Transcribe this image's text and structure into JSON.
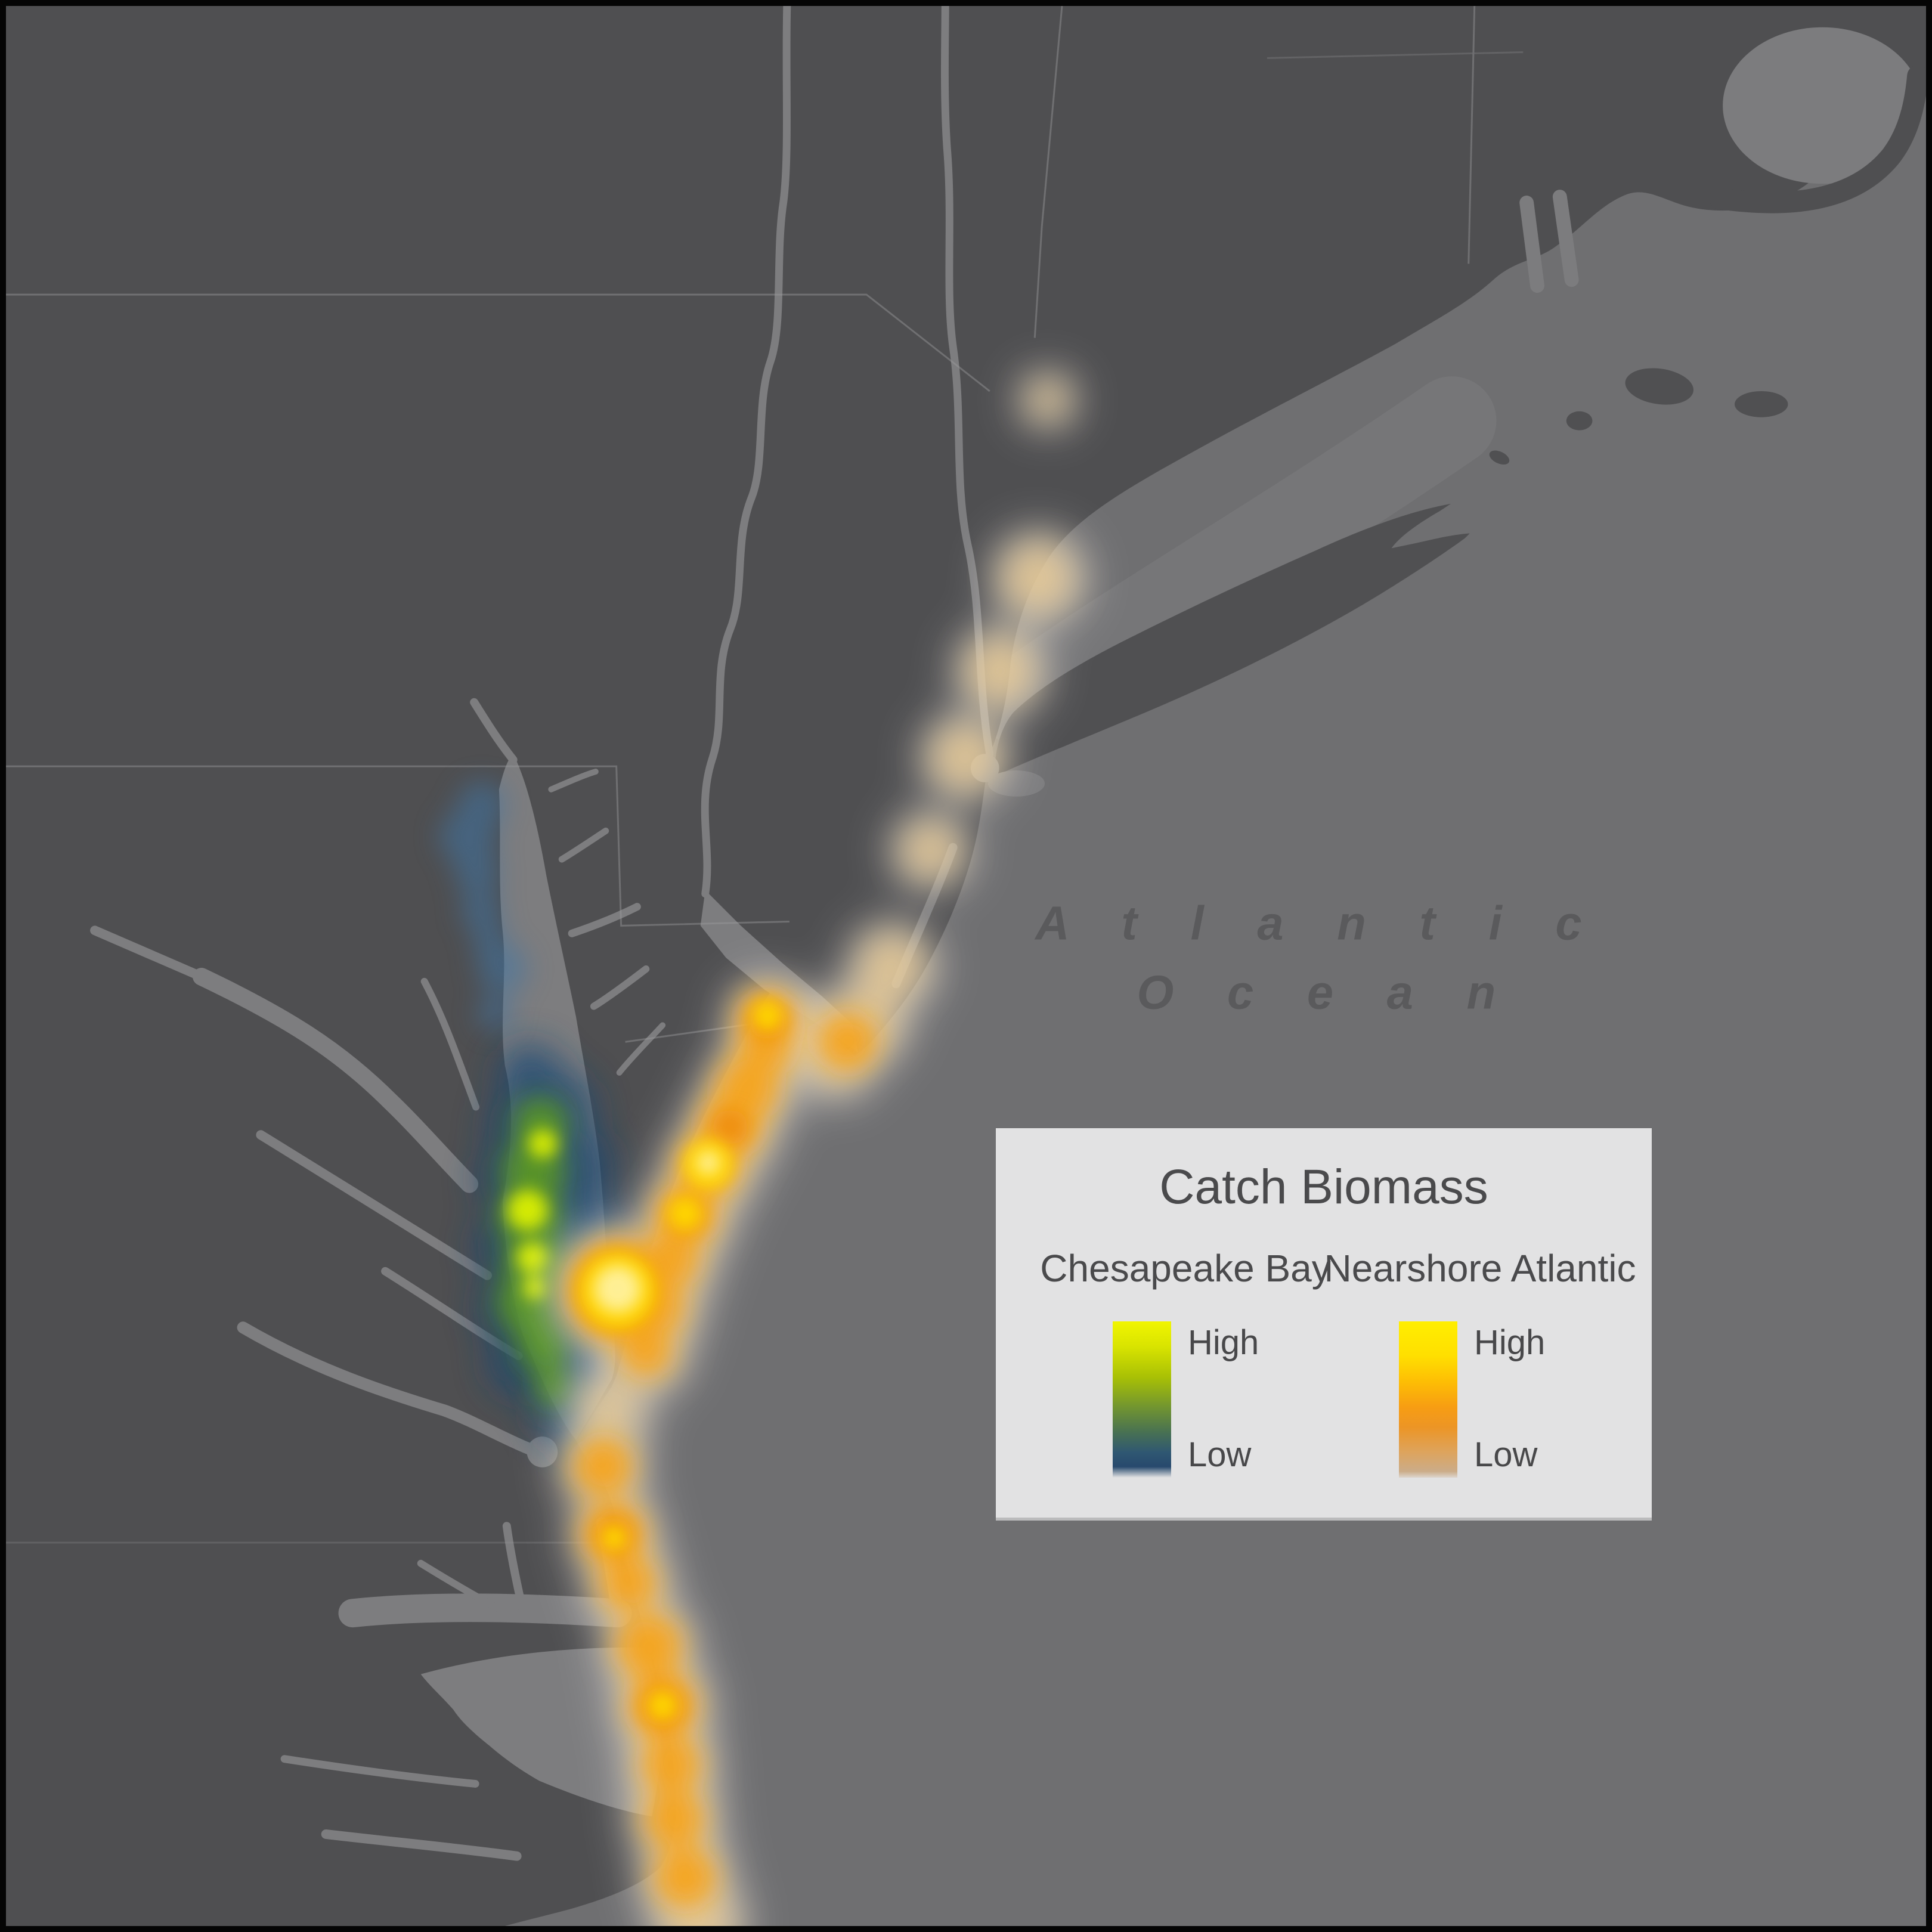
{
  "map": {
    "ocean_label_line1": "A t l a n t i c",
    "ocean_label_line2": "O c e a n",
    "colors": {
      "frame": "#050505",
      "ocean": "#6f6f71",
      "land": "#4f4f51",
      "estuary_water": "#7d7d7f",
      "sound_water": "#7c7c7e",
      "boundary_line": "#9a9a9c"
    }
  },
  "legend": {
    "title": "Catch Biomass",
    "columns": [
      {
        "name": "Chesapeake Bay",
        "high_label": "High",
        "low_label": "Low",
        "ramp_css": "linear-gradient(to bottom,#f1f500 0%,#d9e400 16%,#a8c005 36%,#74972e 54%,#4a7350 70%,#2f5772 84%,#27496d 93%,rgba(226,226,227,0) 100%)"
      },
      {
        "name": "Nearshore Atlantic",
        "high_label": "High",
        "low_label": "Low",
        "ramp_css": "linear-gradient(to bottom,#ffee00 0%,#ffdf00 22%,#fdbb05 40%,#f79d13 55%,#ec9526 68%,#dda45e 84%,#cbac89 96%,rgba(203,172,137,0.25) 100%)"
      }
    ]
  },
  "heat_layers": [
    {
      "name": "atlantic-halo",
      "color": "#ffffff",
      "opacity": 0.5,
      "blur": "b40",
      "blobs": [
        [
          1758,
          665,
          48
        ],
        [
          1742,
          965,
          80
        ],
        [
          1678,
          1122,
          78
        ],
        [
          1618,
          1268,
          75
        ],
        [
          1560,
          1425,
          68
        ],
        [
          1495,
          1620,
          75
        ],
        [
          1448,
          1712,
          75
        ],
        [
          1398,
          1772,
          75
        ],
        [
          1340,
          1732,
          62
        ],
        [
          1285,
          1712,
          70
        ],
        [
          1252,
          1832,
          78
        ],
        [
          1224,
          1895,
          80
        ],
        [
          1188,
          1962,
          80
        ],
        [
          1150,
          2042,
          80
        ],
        [
          1122,
          2118,
          78
        ],
        [
          1100,
          2198,
          76
        ],
        [
          1080,
          2272,
          72
        ],
        [
          1032,
          2168,
          115
        ],
        [
          1015,
          2368,
          72
        ],
        [
          1005,
          2462,
          75
        ],
        [
          1026,
          2578,
          75
        ],
        [
          1050,
          2662,
          75
        ],
        [
          1085,
          2768,
          80
        ],
        [
          1108,
          2868,
          85
        ],
        [
          1122,
          2968,
          80
        ],
        [
          1128,
          3058,
          80
        ],
        [
          1145,
          3155,
          80
        ],
        [
          1168,
          3235,
          80
        ]
      ]
    },
    {
      "name": "atlantic-tan-base",
      "color": "#e8c993",
      "opacity": 0.85,
      "blur": "b30",
      "blobs": [
        [
          1758,
          665,
          34
        ],
        [
          1742,
          965,
          62
        ],
        [
          1678,
          1122,
          60
        ],
        [
          1618,
          1268,
          58
        ],
        [
          1560,
          1425,
          50
        ],
        [
          1495,
          1620,
          58
        ],
        [
          1448,
          1715,
          60
        ],
        [
          1400,
          1768,
          58
        ],
        [
          1340,
          1730,
          50
        ],
        [
          1285,
          1712,
          56
        ],
        [
          1282,
          1765,
          54
        ],
        [
          1252,
          1832,
          60
        ],
        [
          1224,
          1895,
          62
        ],
        [
          1188,
          1962,
          62
        ],
        [
          1150,
          2042,
          62
        ],
        [
          1122,
          2118,
          60
        ],
        [
          1100,
          2198,
          58
        ],
        [
          1080,
          2272,
          56
        ],
        [
          1032,
          2168,
          95
        ],
        [
          1015,
          2368,
          55
        ],
        [
          1005,
          2462,
          60
        ],
        [
          1026,
          2578,
          60
        ],
        [
          1050,
          2662,
          58
        ],
        [
          1085,
          2768,
          62
        ],
        [
          1108,
          2868,
          66
        ],
        [
          1122,
          2968,
          62
        ],
        [
          1128,
          3058,
          62
        ],
        [
          1145,
          3155,
          62
        ],
        [
          1168,
          3235,
          62
        ]
      ]
    },
    {
      "name": "atlantic-orange",
      "color": "#f7a315",
      "opacity": 0.9,
      "blur": "b22",
      "blobs": [
        [
          1420,
          1748,
          48
        ],
        [
          1285,
          1710,
          48
        ],
        [
          1280,
          1762,
          44
        ],
        [
          1250,
          1828,
          52
        ],
        [
          1222,
          1890,
          52
        ],
        [
          1185,
          1958,
          52
        ],
        [
          1148,
          2040,
          50
        ],
        [
          1120,
          2115,
          48
        ],
        [
          1098,
          2195,
          46
        ],
        [
          1080,
          2270,
          42
        ],
        [
          1032,
          2168,
          86
        ],
        [
          1008,
          2465,
          48
        ],
        [
          1026,
          2578,
          52
        ],
        [
          1050,
          2662,
          46
        ],
        [
          1085,
          2768,
          54
        ],
        [
          1108,
          2868,
          56
        ],
        [
          1122,
          2968,
          48
        ],
        [
          1128,
          3060,
          48
        ],
        [
          1146,
          3158,
          50
        ]
      ]
    },
    {
      "name": "atlantic-deep-orange",
      "color": "#ef8c0a",
      "opacity": 0.85,
      "blur": "b16",
      "blobs": [
        [
          1285,
          1714,
          30
        ],
        [
          1222,
          1892,
          30
        ],
        [
          1148,
          2042,
          28
        ],
        [
          1032,
          2168,
          62
        ],
        [
          1108,
          2870,
          34
        ],
        [
          1026,
          2580,
          30
        ]
      ]
    },
    {
      "name": "atlantic-yellow-core",
      "color": "#ffd800",
      "opacity": 0.95,
      "blur": "b13",
      "blobs": [
        [
          1285,
          1704,
          26
        ],
        [
          1185,
          1955,
          42
        ],
        [
          1146,
          2038,
          30
        ],
        [
          1032,
          2168,
          66
        ],
        [
          1108,
          2868,
          26
        ],
        [
          1026,
          2585,
          22
        ]
      ]
    },
    {
      "name": "atlantic-bright-core",
      "color": "#fff3a6",
      "opacity": 0.9,
      "blur": "b13",
      "blobs": [
        [
          1032,
          2165,
          40
        ],
        [
          1185,
          1952,
          20
        ]
      ]
    },
    {
      "name": "chesapeake-blue-faint",
      "color": "#4076a6",
      "opacity": 0.55,
      "blur": "b22",
      "blobs": [
        [
          803,
          1348,
          40
        ],
        [
          780,
          1402,
          48
        ],
        [
          795,
          1462,
          38
        ],
        [
          802,
          1528,
          34
        ],
        [
          818,
          1582,
          30
        ],
        [
          838,
          1625,
          42
        ],
        [
          826,
          1700,
          30
        ]
      ]
    },
    {
      "name": "chesapeake-blue-deep",
      "color": "#1d4a72",
      "opacity": 0.8,
      "blur": "b30",
      "blobs": [
        [
          884,
          1806,
          55
        ],
        [
          932,
          1862,
          64
        ],
        [
          955,
          1958,
          72
        ],
        [
          965,
          2062,
          76
        ],
        [
          955,
          2172,
          76
        ],
        [
          938,
          2282,
          72
        ],
        [
          950,
          2370,
          62
        ],
        [
          982,
          2418,
          48
        ],
        [
          872,
          2288,
          58
        ],
        [
          850,
          2200,
          54
        ],
        [
          845,
          2092,
          54
        ],
        [
          850,
          1978,
          54
        ],
        [
          860,
          1888,
          48
        ],
        [
          912,
          2075,
          60
        ],
        [
          920,
          2180,
          60
        ]
      ]
    },
    {
      "name": "chesapeake-green",
      "color": "#5f9e1c",
      "opacity": 0.85,
      "blur": "b22",
      "blobs": [
        [
          902,
          1888,
          46
        ],
        [
          890,
          1965,
          54
        ],
        [
          884,
          2045,
          56
        ],
        [
          892,
          2125,
          54
        ],
        [
          882,
          2200,
          48
        ],
        [
          906,
          2262,
          44
        ],
        [
          864,
          2186,
          38
        ],
        [
          924,
          2332,
          32
        ]
      ]
    },
    {
      "name": "chesapeake-yellowgreen-core",
      "color": "#e2f400",
      "opacity": 0.9,
      "blur": "b13",
      "blobs": [
        [
          906,
          1920,
          24
        ],
        [
          880,
          2032,
          34
        ],
        [
          888,
          2112,
          26
        ],
        [
          892,
          2163,
          19
        ]
      ]
    }
  ]
}
